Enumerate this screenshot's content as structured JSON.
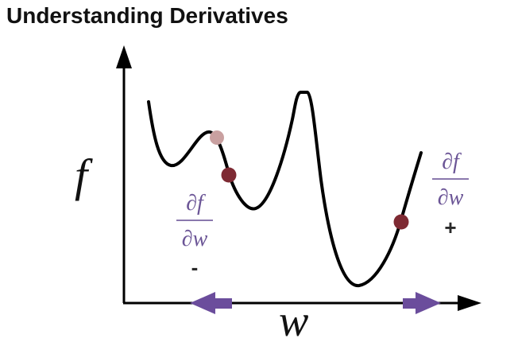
{
  "title": "Understanding Derivatives",
  "axes": {
    "y_label": "f",
    "x_label": "w"
  },
  "left_derivative": {
    "numerator": "∂f",
    "denominator": "∂w",
    "sign": "-"
  },
  "right_derivative": {
    "numerator": "∂f",
    "denominator": "∂w",
    "sign": "+"
  },
  "colors": {
    "curve": "#000000",
    "point": "#7e2a33",
    "faded_point": "#c9a0a0",
    "arrow": "#6b4d9c",
    "derivative_text": "#6b5596"
  }
}
